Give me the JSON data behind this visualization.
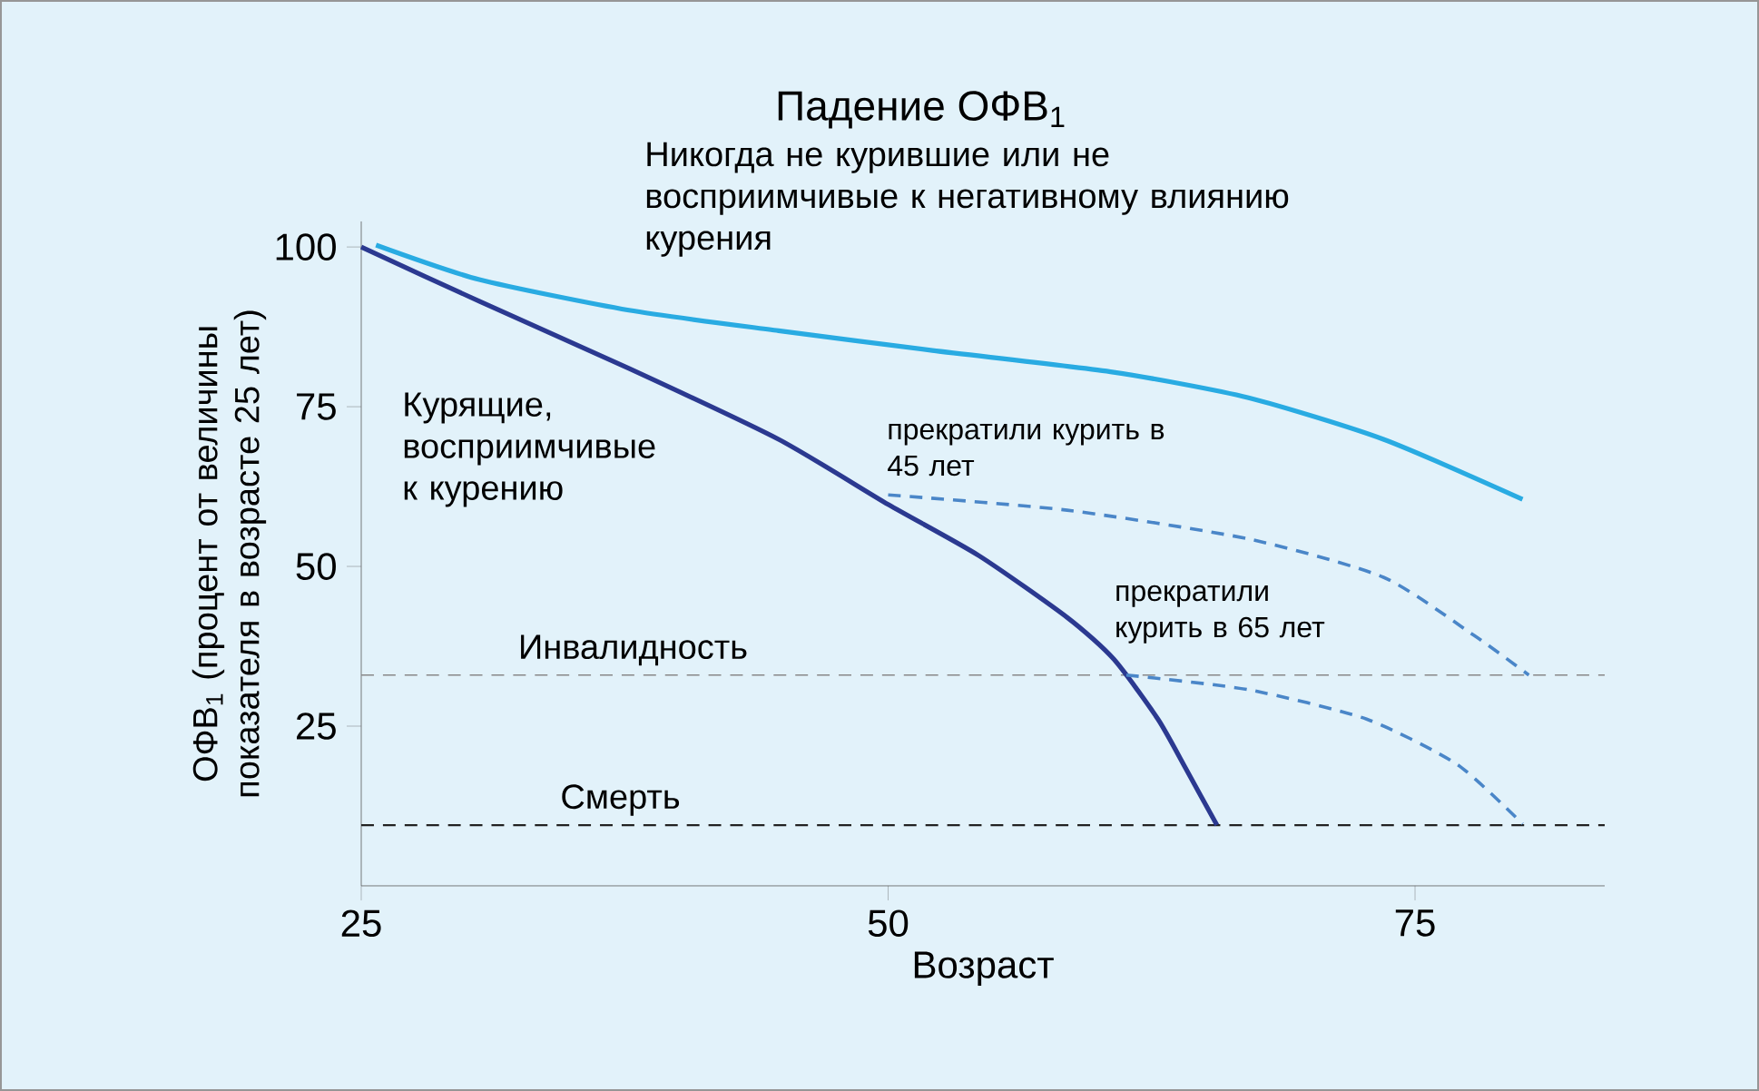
{
  "chart_data": {
    "type": "line",
    "title": "Падение ОФВ$_{1}$",
    "xlabel": "Возраст",
    "ylabel": "ОФВ$_{1}$ (процент от величины показателя в возрасте 25 лет)",
    "xlim": [
      25,
      84
    ],
    "ylim": [
      0,
      104
    ],
    "xticks": [
      25,
      50,
      75
    ],
    "yticks": [
      25,
      50,
      75,
      100
    ],
    "legend": false,
    "series": [
      {
        "name": "Никогда не курившие или не восприимчивые к негативному влиянию курения",
        "color": "#29abe2",
        "line_style": "solid",
        "x": [
          25.7,
          30.6,
          37.7,
          44.8,
          52.1,
          60.7,
          67.1,
          73.5,
          80.1
        ],
        "values": [
          100.3,
          94.9,
          90.1,
          86.9,
          83.8,
          80.4,
          76.4,
          69.9,
          60.5
        ]
      },
      {
        "name": "Курящие, восприимчивые к курению",
        "color": "#2b3990",
        "line_style": "solid",
        "x": [
          25,
          30.6,
          37.7,
          44.8,
          50,
          54.3,
          58.5,
          60.7,
          62.8,
          64.1,
          65.6
        ],
        "values": [
          100,
          91.5,
          81.0,
          69.9,
          59.7,
          51.7,
          42.0,
          35.5,
          26.1,
          18.5,
          9.5
        ]
      },
      {
        "name": "прекратили курить в 45 лет",
        "color": "#4a86c8",
        "line_style": "dashed",
        "x": [
          50,
          58.5,
          67.1,
          73.5,
          77.8,
          80.4
        ],
        "values": [
          61.2,
          58.8,
          54.3,
          48.3,
          39.2,
          33.0
        ]
      },
      {
        "name": "прекратили курить в 65 лет",
        "color": "#4a86c8",
        "line_style": "dashed",
        "x": [
          61.3,
          67.1,
          72.7,
          77.0,
          80.1
        ],
        "values": [
          33.0,
          30.7,
          26.1,
          19.0,
          9.7
        ]
      }
    ],
    "ref_lines": [
      {
        "axis": "y",
        "value": 33,
        "label": "Инвалидность",
        "color": "#888888",
        "line_style": "dashed"
      },
      {
        "axis": "y",
        "value": 9.5,
        "label": "Смерть",
        "color": "#222222",
        "line_style": "dashed"
      }
    ]
  }
}
